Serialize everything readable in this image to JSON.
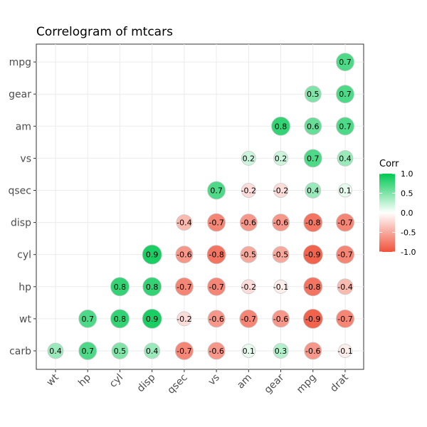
{
  "chart_data": {
    "type": "correlogram",
    "title": "Correlogram of mtcars",
    "x_categories": [
      "wt",
      "hp",
      "cyl",
      "disp",
      "qsec",
      "vs",
      "am",
      "gear",
      "mpg",
      "drat"
    ],
    "y_categories": [
      "carb",
      "wt",
      "hp",
      "cyl",
      "disp",
      "qsec",
      "vs",
      "am",
      "gear",
      "mpg"
    ],
    "cells": [
      {
        "x": "wt",
        "y": "carb",
        "value": 0.4
      },
      {
        "x": "hp",
        "y": "carb",
        "value": 0.7
      },
      {
        "x": "cyl",
        "y": "carb",
        "value": 0.5
      },
      {
        "x": "disp",
        "y": "carb",
        "value": 0.4
      },
      {
        "x": "qsec",
        "y": "carb",
        "value": -0.7
      },
      {
        "x": "vs",
        "y": "carb",
        "value": -0.6
      },
      {
        "x": "am",
        "y": "carb",
        "value": 0.1
      },
      {
        "x": "gear",
        "y": "carb",
        "value": 0.3
      },
      {
        "x": "mpg",
        "y": "carb",
        "value": -0.6
      },
      {
        "x": "drat",
        "y": "carb",
        "value": -0.1
      },
      {
        "x": "hp",
        "y": "wt",
        "value": 0.7
      },
      {
        "x": "cyl",
        "y": "wt",
        "value": 0.8
      },
      {
        "x": "disp",
        "y": "wt",
        "value": 0.9
      },
      {
        "x": "qsec",
        "y": "wt",
        "value": -0.2
      },
      {
        "x": "vs",
        "y": "wt",
        "value": -0.6
      },
      {
        "x": "am",
        "y": "wt",
        "value": -0.7
      },
      {
        "x": "gear",
        "y": "wt",
        "value": -0.6
      },
      {
        "x": "mpg",
        "y": "wt",
        "value": -0.9
      },
      {
        "x": "drat",
        "y": "wt",
        "value": -0.7
      },
      {
        "x": "cyl",
        "y": "hp",
        "value": 0.8
      },
      {
        "x": "disp",
        "y": "hp",
        "value": 0.8
      },
      {
        "x": "qsec",
        "y": "hp",
        "value": -0.7
      },
      {
        "x": "vs",
        "y": "hp",
        "value": -0.7
      },
      {
        "x": "am",
        "y": "hp",
        "value": -0.2
      },
      {
        "x": "gear",
        "y": "hp",
        "value": -0.1
      },
      {
        "x": "mpg",
        "y": "hp",
        "value": -0.8
      },
      {
        "x": "drat",
        "y": "hp",
        "value": -0.4
      },
      {
        "x": "disp",
        "y": "cyl",
        "value": 0.9
      },
      {
        "x": "qsec",
        "y": "cyl",
        "value": -0.6
      },
      {
        "x": "vs",
        "y": "cyl",
        "value": -0.8
      },
      {
        "x": "am",
        "y": "cyl",
        "value": -0.5
      },
      {
        "x": "gear",
        "y": "cyl",
        "value": -0.5
      },
      {
        "x": "mpg",
        "y": "cyl",
        "value": -0.9
      },
      {
        "x": "drat",
        "y": "cyl",
        "value": -0.7
      },
      {
        "x": "qsec",
        "y": "disp",
        "value": -0.4
      },
      {
        "x": "vs",
        "y": "disp",
        "value": -0.7
      },
      {
        "x": "am",
        "y": "disp",
        "value": -0.6
      },
      {
        "x": "gear",
        "y": "disp",
        "value": -0.6
      },
      {
        "x": "mpg",
        "y": "disp",
        "value": -0.8
      },
      {
        "x": "drat",
        "y": "disp",
        "value": -0.7
      },
      {
        "x": "vs",
        "y": "qsec",
        "value": 0.7
      },
      {
        "x": "am",
        "y": "qsec",
        "value": -0.2
      },
      {
        "x": "gear",
        "y": "qsec",
        "value": -0.2
      },
      {
        "x": "mpg",
        "y": "qsec",
        "value": 0.4
      },
      {
        "x": "drat",
        "y": "qsec",
        "value": 0.1
      },
      {
        "x": "am",
        "y": "vs",
        "value": 0.2
      },
      {
        "x": "gear",
        "y": "vs",
        "value": 0.2
      },
      {
        "x": "mpg",
        "y": "vs",
        "value": 0.7
      },
      {
        "x": "drat",
        "y": "vs",
        "value": 0.4
      },
      {
        "x": "gear",
        "y": "am",
        "value": 0.8
      },
      {
        "x": "mpg",
        "y": "am",
        "value": 0.6
      },
      {
        "x": "drat",
        "y": "am",
        "value": 0.7
      },
      {
        "x": "mpg",
        "y": "gear",
        "value": 0.5
      },
      {
        "x": "drat",
        "y": "gear",
        "value": 0.7
      },
      {
        "x": "drat",
        "y": "mpg",
        "value": 0.7
      }
    ],
    "legend": {
      "title": "Corr",
      "ticks": [
        1.0,
        0.5,
        0.0,
        -0.5,
        -1.0
      ],
      "tick_labels": [
        "1.0",
        "0.5",
        "0.0",
        "-0.5",
        "-1.0"
      ],
      "range": [
        -1,
        1
      ],
      "placement": "right"
    },
    "colors": {
      "positive": "#00c853",
      "neutral": "#ffffff",
      "negative": "#f0523a"
    },
    "grid": true
  }
}
